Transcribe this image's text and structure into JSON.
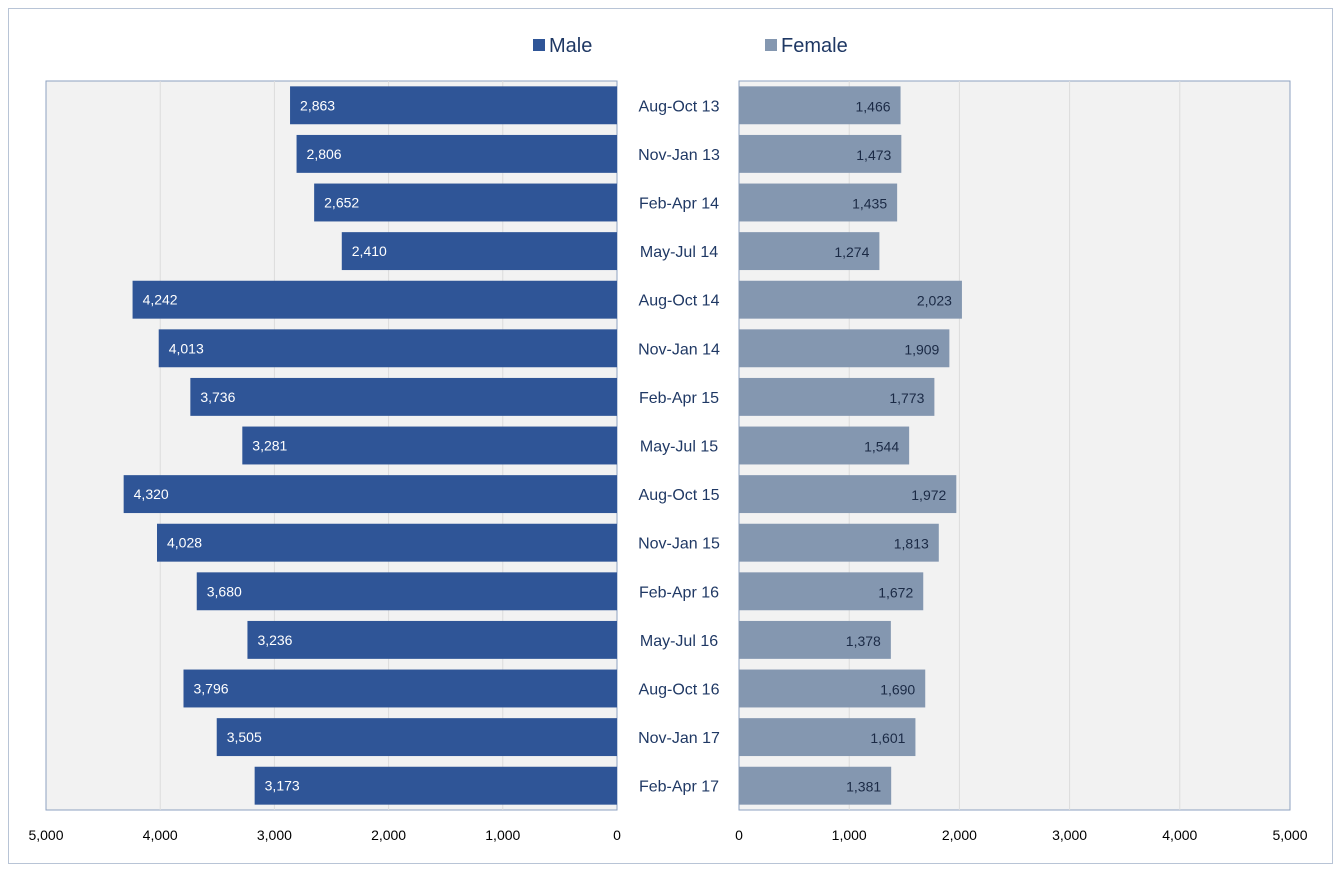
{
  "colors": {
    "male": "#2f5597",
    "female": "#8497b0",
    "plot_bg": "#f2f2f2",
    "grid": "#dcdcdc",
    "axis": "#8ea2c0"
  },
  "legend": [
    {
      "name": "Male",
      "color": "#2f5597"
    },
    {
      "name": "Female",
      "color": "#8497b0"
    }
  ],
  "chart_data": {
    "type": "bar",
    "orientation": "horizontal-butterfly",
    "categories": [
      "Aug-Oct 13",
      "Nov-Jan 13",
      "Feb-Apr 14",
      "May-Jul 14",
      "Aug-Oct 14",
      "Nov-Jan 14",
      "Feb-Apr 15",
      "May-Jul 15",
      "Aug-Oct 15",
      "Nov-Jan 15",
      "Feb-Apr 16",
      "May-Jul 16",
      "Aug-Oct 16",
      "Nov-Jan 17",
      "Feb-Apr 17"
    ],
    "series": [
      {
        "name": "Male",
        "values": [
          2863,
          2806,
          2652,
          2410,
          4242,
          4013,
          3736,
          3281,
          4320,
          4028,
          3680,
          3236,
          3796,
          3505,
          3173
        ],
        "labels": [
          "2,863",
          "2,806",
          "2,652",
          "2,410",
          "4,242",
          "4,013",
          "3,736",
          "3,281",
          "4,320",
          "4,028",
          "3,680",
          "3,236",
          "3,796",
          "3,505",
          "3,173"
        ]
      },
      {
        "name": "Female",
        "values": [
          1466,
          1473,
          1435,
          1274,
          2023,
          1909,
          1773,
          1544,
          1972,
          1813,
          1672,
          1378,
          1690,
          1601,
          1381
        ],
        "labels": [
          "1,466",
          "1,473",
          "1,435",
          "1,274",
          "2,023",
          "1,909",
          "1,773",
          "1,544",
          "1,972",
          "1,813",
          "1,672",
          "1,378",
          "1,690",
          "1,601",
          "1,381"
        ]
      }
    ],
    "xlim": [
      0,
      5000
    ],
    "left_ticks": [
      "5,000",
      "4,000",
      "3,000",
      "2,000",
      "1,000",
      "0"
    ],
    "right_ticks": [
      "0",
      "1,000",
      "2,000",
      "3,000",
      "4,000",
      "5,000"
    ],
    "tick_values": [
      5000,
      4000,
      3000,
      2000,
      1000,
      0
    ],
    "grid": true,
    "legend_position": "top"
  }
}
